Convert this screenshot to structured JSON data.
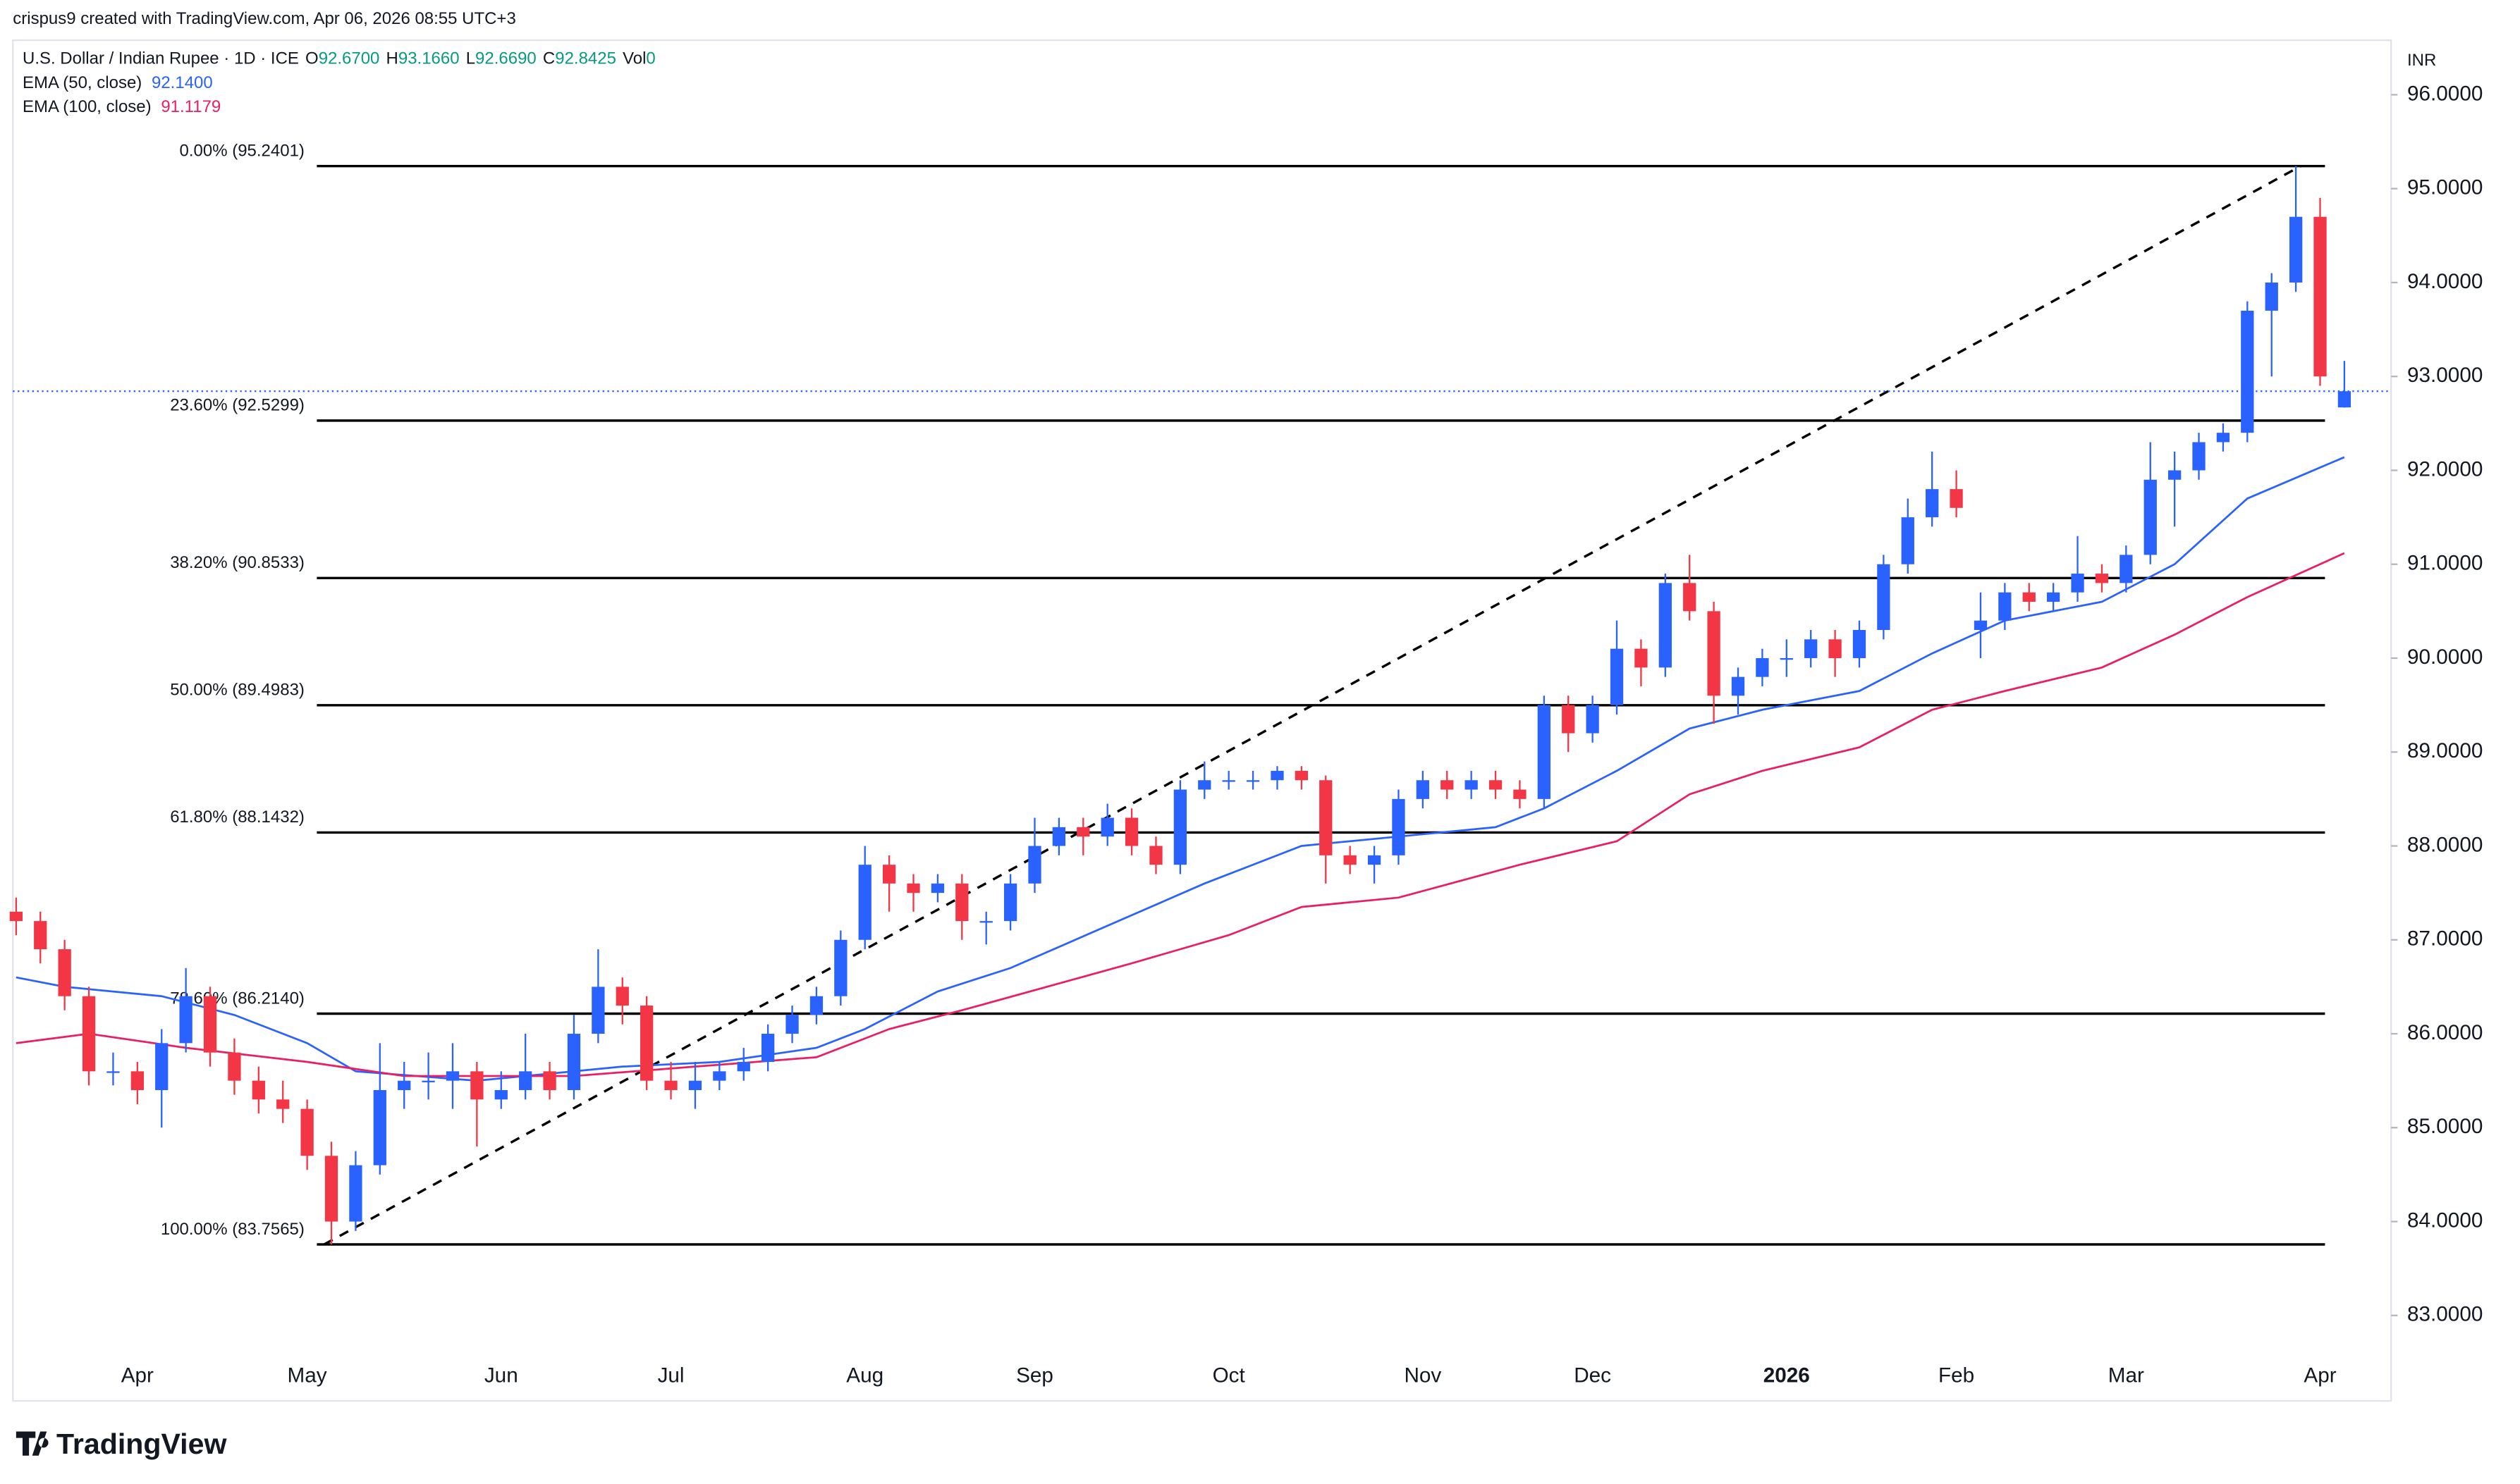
{
  "header": {
    "attribution": "crispus9 created with TradingView.com, Apr 06, 2026 08:55 UTC+3"
  },
  "chart_data": {
    "type": "candlestick",
    "symbol": "U.S. Dollar / Indian Rupee · 1D · ICE",
    "ohlc_legend": [
      {
        "label": "O",
        "value": "92.6700"
      },
      {
        "label": "H",
        "value": "93.1660"
      },
      {
        "label": "L",
        "value": "92.6690"
      },
      {
        "label": "C",
        "value": "92.8425"
      },
      {
        "label": "Vol",
        "value": "0"
      }
    ],
    "categories": [
      null,
      null,
      null,
      null,
      null,
      "Apr",
      null,
      null,
      null,
      null,
      null,
      null,
      "May",
      null,
      null,
      null,
      null,
      null,
      null,
      null,
      "Jun",
      null,
      null,
      null,
      null,
      null,
      null,
      "Jul",
      null,
      null,
      null,
      null,
      null,
      null,
      null,
      "Aug",
      null,
      null,
      null,
      null,
      null,
      null,
      "Sep",
      null,
      null,
      null,
      null,
      null,
      null,
      null,
      "Oct",
      null,
      null,
      null,
      null,
      null,
      null,
      null,
      "Nov",
      null,
      null,
      null,
      null,
      null,
      null,
      "Dec",
      null,
      null,
      null,
      null,
      null,
      null,
      null,
      "2026",
      null,
      null,
      null,
      null,
      null,
      null,
      "Feb",
      null,
      null,
      null,
      null,
      null,
      null,
      "Mar",
      null,
      null,
      null,
      null,
      null,
      null,
      null,
      "Apr",
      null
    ],
    "ohlc": [
      [
        87.3,
        87.45,
        87.05,
        87.2
      ],
      [
        87.2,
        87.3,
        86.75,
        86.9
      ],
      [
        86.9,
        87.0,
        86.25,
        86.4
      ],
      [
        86.4,
        86.5,
        85.45,
        85.6
      ],
      [
        85.6,
        85.8,
        85.45,
        85.6
      ],
      [
        85.6,
        85.7,
        85.25,
        85.4
      ],
      [
        85.4,
        86.05,
        85.0,
        85.9
      ],
      [
        85.9,
        86.7,
        85.8,
        86.4
      ],
      [
        86.4,
        86.5,
        85.65,
        85.8
      ],
      [
        85.8,
        85.95,
        85.35,
        85.5
      ],
      [
        85.5,
        85.65,
        85.15,
        85.3
      ],
      [
        85.3,
        85.5,
        85.05,
        85.2
      ],
      [
        85.2,
        85.3,
        84.55,
        84.7
      ],
      [
        84.7,
        84.85,
        83.7565,
        84.0
      ],
      [
        84.0,
        84.75,
        83.9,
        84.6
      ],
      [
        84.6,
        85.9,
        84.5,
        85.4
      ],
      [
        85.4,
        85.7,
        85.2,
        85.5
      ],
      [
        85.5,
        85.8,
        85.3,
        85.5
      ],
      [
        85.5,
        85.9,
        85.2,
        85.6
      ],
      [
        85.6,
        85.7,
        84.8,
        85.3
      ],
      [
        85.3,
        85.6,
        85.2,
        85.4
      ],
      [
        85.4,
        86.0,
        85.3,
        85.6
      ],
      [
        85.6,
        85.7,
        85.3,
        85.4
      ],
      [
        85.4,
        86.2,
        85.3,
        86.0
      ],
      [
        86.0,
        86.9,
        85.9,
        86.5
      ],
      [
        86.5,
        86.6,
        86.1,
        86.3
      ],
      [
        86.3,
        86.4,
        85.4,
        85.5
      ],
      [
        85.5,
        85.7,
        85.3,
        85.4
      ],
      [
        85.4,
        85.7,
        85.2,
        85.5
      ],
      [
        85.5,
        85.7,
        85.4,
        85.6
      ],
      [
        85.6,
        85.85,
        85.5,
        85.7
      ],
      [
        85.7,
        86.1,
        85.6,
        86.0
      ],
      [
        86.0,
        86.3,
        85.9,
        86.2
      ],
      [
        86.2,
        86.5,
        86.1,
        86.4
      ],
      [
        86.4,
        87.1,
        86.3,
        87.0
      ],
      [
        87.0,
        88.0,
        86.9,
        87.8
      ],
      [
        87.8,
        87.9,
        87.3,
        87.6
      ],
      [
        87.6,
        87.7,
        87.3,
        87.5
      ],
      [
        87.5,
        87.7,
        87.4,
        87.6
      ],
      [
        87.6,
        87.7,
        87.0,
        87.2
      ],
      [
        87.2,
        87.3,
        86.95,
        87.2
      ],
      [
        87.2,
        87.7,
        87.1,
        87.6
      ],
      [
        87.6,
        88.3,
        87.5,
        88.0
      ],
      [
        88.0,
        88.3,
        87.9,
        88.2
      ],
      [
        88.2,
        88.3,
        87.9,
        88.1
      ],
      [
        88.1,
        88.45,
        88.0,
        88.3
      ],
      [
        88.3,
        88.4,
        87.9,
        88.0
      ],
      [
        88.0,
        88.1,
        87.7,
        87.8
      ],
      [
        87.8,
        88.7,
        87.7,
        88.6
      ],
      [
        88.6,
        88.9,
        88.5,
        88.7
      ],
      [
        88.7,
        88.8,
        88.6,
        88.7
      ],
      [
        88.7,
        88.8,
        88.6,
        88.7
      ],
      [
        88.7,
        88.85,
        88.6,
        88.8
      ],
      [
        88.8,
        88.85,
        88.6,
        88.7
      ],
      [
        88.7,
        88.75,
        87.6,
        87.9
      ],
      [
        87.9,
        88.0,
        87.7,
        87.8
      ],
      [
        87.8,
        88.0,
        87.6,
        87.9
      ],
      [
        87.9,
        88.6,
        87.8,
        88.5
      ],
      [
        88.5,
        88.8,
        88.4,
        88.7
      ],
      [
        88.7,
        88.8,
        88.5,
        88.6
      ],
      [
        88.6,
        88.8,
        88.5,
        88.7
      ],
      [
        88.7,
        88.8,
        88.5,
        88.6
      ],
      [
        88.6,
        88.7,
        88.4,
        88.5
      ],
      [
        88.5,
        89.6,
        88.4,
        89.5
      ],
      [
        89.5,
        89.6,
        89.0,
        89.2
      ],
      [
        89.2,
        89.6,
        89.1,
        89.5
      ],
      [
        89.5,
        90.4,
        89.4,
        90.1
      ],
      [
        90.1,
        90.2,
        89.7,
        89.9
      ],
      [
        89.9,
        90.9,
        89.8,
        90.8
      ],
      [
        90.8,
        91.1,
        90.4,
        90.5
      ],
      [
        90.5,
        90.6,
        89.3,
        89.6
      ],
      [
        89.6,
        89.9,
        89.4,
        89.8
      ],
      [
        89.8,
        90.1,
        89.7,
        90.0
      ],
      [
        90.0,
        90.2,
        89.8,
        90.0
      ],
      [
        90.0,
        90.3,
        89.9,
        90.2
      ],
      [
        90.2,
        90.3,
        89.8,
        90.0
      ],
      [
        90.0,
        90.4,
        89.9,
        90.3
      ],
      [
        90.3,
        91.1,
        90.2,
        91.0
      ],
      [
        91.0,
        91.7,
        90.9,
        91.5
      ],
      [
        91.5,
        92.2,
        91.4,
        91.8
      ],
      [
        91.8,
        92.0,
        91.5,
        91.6
      ],
      [
        90.3,
        90.7,
        90.0,
        90.4
      ],
      [
        90.4,
        90.8,
        90.3,
        90.7
      ],
      [
        90.7,
        90.8,
        90.5,
        90.6
      ],
      [
        90.6,
        90.8,
        90.5,
        90.7
      ],
      [
        90.7,
        91.3,
        90.6,
        90.9
      ],
      [
        90.9,
        91.0,
        90.7,
        90.8
      ],
      [
        90.8,
        91.2,
        90.7,
        91.1
      ],
      [
        91.1,
        92.3,
        91.0,
        91.9
      ],
      [
        91.9,
        92.2,
        91.4,
        92.0
      ],
      [
        92.0,
        92.4,
        91.9,
        92.3
      ],
      [
        92.3,
        92.5,
        92.2,
        92.4
      ],
      [
        92.4,
        93.8,
        92.3,
        93.7
      ],
      [
        93.7,
        94.1,
        93.0,
        94.0
      ],
      [
        94.0,
        95.2401,
        93.9,
        94.7
      ],
      [
        94.7,
        94.9,
        92.9,
        93.0
      ],
      [
        92.67,
        93.166,
        92.669,
        92.8425
      ]
    ],
    "up_color": "#2962ff",
    "down_color": "#f23645",
    "series": [
      {
        "name": "EMA (50, close)",
        "color": "#2962ff",
        "legend_value": "92.1400",
        "x": [
          0,
          2,
          6,
          9,
          12,
          14,
          19,
          25,
          29,
          33,
          35,
          38,
          41,
          45,
          49,
          53,
          57,
          61,
          63,
          66,
          69,
          72,
          76,
          79,
          82,
          86,
          89,
          92,
          96
        ],
        "values": [
          86.6,
          86.5,
          86.4,
          86.2,
          85.9,
          85.6,
          85.5,
          85.65,
          85.7,
          85.85,
          86.05,
          86.45,
          86.7,
          87.15,
          87.6,
          88.0,
          88.1,
          88.2,
          88.4,
          88.8,
          89.25,
          89.45,
          89.65,
          90.05,
          90.4,
          90.6,
          91.0,
          91.7,
          92.14
        ]
      },
      {
        "name": "EMA (100, close)",
        "color": "#e91e63",
        "legend_value": "91.1179",
        "x": [
          0,
          3,
          7,
          12,
          16,
          23,
          28,
          33,
          36,
          39,
          46,
          50,
          53,
          57,
          62,
          66,
          69,
          72,
          76,
          79,
          82,
          86,
          89,
          92,
          96
        ],
        "values": [
          85.9,
          86.0,
          85.85,
          85.7,
          85.55,
          85.55,
          85.65,
          85.75,
          86.05,
          86.25,
          86.75,
          87.05,
          87.35,
          87.45,
          87.8,
          88.05,
          88.55,
          88.8,
          89.05,
          89.45,
          89.65,
          89.9,
          90.25,
          90.65,
          91.1179
        ]
      }
    ],
    "fib_levels": [
      {
        "value": 95.2401,
        "label": "0.00% (95.2401)"
      },
      {
        "value": 92.5299,
        "label": "23.60% (92.5299)"
      },
      {
        "value": 90.8533,
        "label": "38.20% (90.8533)"
      },
      {
        "value": 89.4983,
        "label": "50.00% (89.4983)"
      },
      {
        "value": 88.1432,
        "label": "61.80% (88.1432)"
      },
      {
        "value": 86.214,
        "label": "78.60% (86.2140)"
      },
      {
        "value": 83.7565,
        "label": "100.00% (83.7565)"
      }
    ],
    "y_unit": "INR",
    "ylim": [
      82.09,
      96.58
    ],
    "yticks": [
      {
        "value": 83,
        "label": "83.0000"
      },
      {
        "value": 84,
        "label": "84.0000"
      },
      {
        "value": 85,
        "label": "85.0000"
      },
      {
        "value": 86,
        "label": "86.0000"
      },
      {
        "value": 87,
        "label": "87.0000"
      },
      {
        "value": 88,
        "label": "88.0000"
      },
      {
        "value": 89,
        "label": "89.0000"
      },
      {
        "value": 90,
        "label": "90.0000"
      },
      {
        "value": 91,
        "label": "91.0000"
      },
      {
        "value": 92,
        "label": "92.0000"
      },
      {
        "value": 93,
        "label": "93.0000"
      },
      {
        "value": 94,
        "label": "94.0000"
      },
      {
        "value": 95,
        "label": "95.0000"
      },
      {
        "value": 96,
        "label": "96.0000"
      }
    ]
  },
  "footer": {
    "brand": "TradingView"
  }
}
